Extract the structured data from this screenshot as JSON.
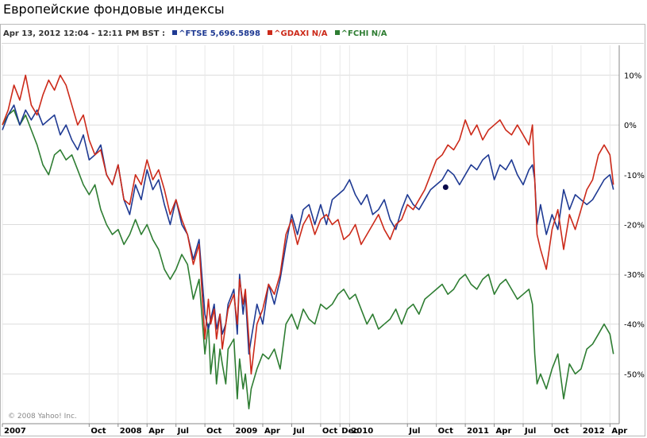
{
  "page_title": "Европейские фондовые индексы",
  "legend": {
    "datetime": "Apr 13, 2012 12:04 - 12:11 PM BST :",
    "entries": [
      {
        "label": "^FTSE 5,696.5898",
        "color": "#1f3a93"
      },
      {
        "label": "^GDAXI N/A",
        "color": "#cc2a1a"
      },
      {
        "label": "^FCHI N/A",
        "color": "#2e7d32"
      }
    ]
  },
  "copyright": "© 2008 Yahoo! Inc.",
  "chart_data": {
    "type": "line",
    "ylim": [
      -60,
      16
    ],
    "y_ticks": [
      10,
      0,
      -10,
      -20,
      -30,
      -40,
      -50
    ],
    "y_tick_labels": [
      "10%",
      "0%",
      "-10%",
      "-20%",
      "-30%",
      "-40%",
      "-50%"
    ],
    "y_axis_side": "right",
    "grid": true,
    "x_range": [
      2007.0,
      2012.33
    ],
    "x_ticks": [
      2007.0,
      2007.75,
      2008.0,
      2008.25,
      2008.5,
      2008.75,
      2009.0,
      2009.25,
      2009.5,
      2009.75,
      2009.917,
      2010.0,
      2010.5,
      2010.75,
      2011.0,
      2011.25,
      2011.5,
      2011.75,
      2012.0,
      2012.25
    ],
    "x_tick_labels": [
      "2007",
      "Oct",
      "2008",
      "Apr",
      "Jul",
      "Oct",
      "2009",
      "Apr",
      "Jul",
      "Oct",
      "Dec",
      "2010",
      "Jul",
      "Oct",
      "2011",
      "Apr",
      "Jul",
      "Oct",
      "2012",
      "Apr"
    ],
    "series": [
      {
        "name": "^FTSE",
        "color": "#1f3a93",
        "x": [
          2007.0,
          2007.05,
          2007.1,
          2007.15,
          2007.2,
          2007.25,
          2007.3,
          2007.35,
          2007.4,
          2007.45,
          2007.5,
          2007.55,
          2007.6,
          2007.65,
          2007.7,
          2007.75,
          2007.8,
          2007.85,
          2007.9,
          2007.95,
          2008.0,
          2008.05,
          2008.1,
          2008.15,
          2008.2,
          2008.25,
          2008.3,
          2008.35,
          2008.4,
          2008.45,
          2008.5,
          2008.55,
          2008.6,
          2008.65,
          2008.7,
          2008.75,
          2008.78,
          2008.8,
          2008.83,
          2008.85,
          2008.88,
          2008.9,
          2008.93,
          2008.95,
          2009.0,
          2009.03,
          2009.05,
          2009.08,
          2009.1,
          2009.13,
          2009.15,
          2009.2,
          2009.25,
          2009.3,
          2009.35,
          2009.4,
          2009.45,
          2009.5,
          2009.55,
          2009.6,
          2009.65,
          2009.7,
          2009.75,
          2009.8,
          2009.85,
          2009.9,
          2009.95,
          2010.0,
          2010.05,
          2010.1,
          2010.15,
          2010.2,
          2010.25,
          2010.3,
          2010.35,
          2010.4,
          2010.45,
          2010.5,
          2010.55,
          2010.6,
          2010.65,
          2010.7,
          2010.75,
          2010.8,
          2010.85,
          2010.9,
          2010.95,
          2011.0,
          2011.05,
          2011.1,
          2011.15,
          2011.2,
          2011.25,
          2011.3,
          2011.35,
          2011.4,
          2011.45,
          2011.5,
          2011.55,
          2011.58,
          2011.6,
          2011.62,
          2011.65,
          2011.7,
          2011.75,
          2011.8,
          2011.85,
          2011.9,
          2011.95,
          2012.0,
          2012.05,
          2012.1,
          2012.15,
          2012.2,
          2012.25,
          2012.28
        ],
        "y": [
          -1,
          2,
          4,
          0,
          3,
          1,
          3,
          0,
          1,
          2,
          -2,
          0,
          -3,
          -5,
          -2,
          -7,
          -6,
          -4,
          -10,
          -12,
          -8,
          -15,
          -18,
          -12,
          -15,
          -9,
          -13,
          -11,
          -16,
          -20,
          -15,
          -20,
          -22,
          -27,
          -23,
          -38,
          -41,
          -39,
          -36,
          -41,
          -38,
          -42,
          -40,
          -36,
          -33,
          -42,
          -30,
          -38,
          -34,
          -46,
          -43,
          -36,
          -40,
          -32,
          -36,
          -31,
          -24,
          -18,
          -22,
          -17,
          -16,
          -20,
          -16,
          -20,
          -15,
          -14,
          -13,
          -11,
          -14,
          -16,
          -14,
          -18,
          -17,
          -15,
          -19,
          -21,
          -17,
          -14,
          -16,
          -17,
          -15,
          -13,
          -12,
          -11,
          -9,
          -10,
          -12,
          -10,
          -8,
          -9,
          -7,
          -6,
          -11,
          -8,
          -9,
          -7,
          -10,
          -12,
          -9,
          -8,
          -11,
          -20,
          -16,
          -22,
          -18,
          -21,
          -13,
          -17,
          -14,
          -15,
          -16,
          -15,
          -13,
          -11,
          -10,
          -13
        ]
      },
      {
        "name": "^GDAXI",
        "color": "#cc2a1a",
        "x": [
          2007.0,
          2007.05,
          2007.1,
          2007.15,
          2007.2,
          2007.25,
          2007.3,
          2007.35,
          2007.4,
          2007.45,
          2007.5,
          2007.55,
          2007.6,
          2007.65,
          2007.7,
          2007.75,
          2007.8,
          2007.85,
          2007.9,
          2007.95,
          2008.0,
          2008.05,
          2008.1,
          2008.15,
          2008.2,
          2008.25,
          2008.3,
          2008.35,
          2008.4,
          2008.45,
          2008.5,
          2008.55,
          2008.6,
          2008.65,
          2008.7,
          2008.75,
          2008.78,
          2008.8,
          2008.83,
          2008.85,
          2008.88,
          2008.9,
          2008.93,
          2008.95,
          2009.0,
          2009.03,
          2009.05,
          2009.08,
          2009.1,
          2009.13,
          2009.15,
          2009.2,
          2009.25,
          2009.3,
          2009.35,
          2009.4,
          2009.45,
          2009.5,
          2009.55,
          2009.6,
          2009.65,
          2009.7,
          2009.75,
          2009.8,
          2009.85,
          2009.9,
          2009.95,
          2010.0,
          2010.05,
          2010.1,
          2010.15,
          2010.2,
          2010.25,
          2010.3,
          2010.35,
          2010.4,
          2010.45,
          2010.5,
          2010.55,
          2010.6,
          2010.65,
          2010.7,
          2010.75,
          2010.8,
          2010.85,
          2010.9,
          2010.95,
          2011.0,
          2011.05,
          2011.1,
          2011.15,
          2011.2,
          2011.25,
          2011.3,
          2011.35,
          2011.4,
          2011.45,
          2011.5,
          2011.55,
          2011.58,
          2011.6,
          2011.62,
          2011.65,
          2011.7,
          2011.75,
          2011.8,
          2011.85,
          2011.9,
          2011.95,
          2012.0,
          2012.05,
          2012.1,
          2012.15,
          2012.2,
          2012.25,
          2012.28
        ],
        "y": [
          0,
          3,
          8,
          5,
          10,
          4,
          2,
          6,
          9,
          7,
          10,
          8,
          4,
          0,
          2,
          -3,
          -6,
          -5,
          -10,
          -12,
          -8,
          -15,
          -16,
          -10,
          -12,
          -7,
          -11,
          -9,
          -13,
          -18,
          -15,
          -19,
          -22,
          -28,
          -24,
          -43,
          -35,
          -40,
          -37,
          -43,
          -38,
          -45,
          -40,
          -37,
          -34,
          -40,
          -31,
          -36,
          -33,
          -43,
          -50,
          -40,
          -37,
          -32,
          -34,
          -30,
          -22,
          -19,
          -24,
          -20,
          -18,
          -22,
          -19,
          -18,
          -20,
          -19,
          -23,
          -22,
          -20,
          -24,
          -22,
          -20,
          -18,
          -21,
          -23,
          -20,
          -19,
          -16,
          -17,
          -15,
          -13,
          -10,
          -7,
          -6,
          -4,
          -5,
          -3,
          1,
          -2,
          0,
          -3,
          -1,
          0,
          1,
          -1,
          -2,
          0,
          -2,
          -4,
          0,
          -11,
          -22,
          -25,
          -29,
          -21,
          -17,
          -25,
          -18,
          -21,
          -17,
          -13,
          -11,
          -6,
          -4,
          -6,
          -12
        ]
      },
      {
        "name": "^FCHI",
        "color": "#2e7d32",
        "x": [
          2007.0,
          2007.05,
          2007.1,
          2007.15,
          2007.2,
          2007.25,
          2007.3,
          2007.35,
          2007.4,
          2007.45,
          2007.5,
          2007.55,
          2007.6,
          2007.65,
          2007.7,
          2007.75,
          2007.8,
          2007.85,
          2007.9,
          2007.95,
          2008.0,
          2008.05,
          2008.1,
          2008.15,
          2008.2,
          2008.25,
          2008.3,
          2008.35,
          2008.4,
          2008.45,
          2008.5,
          2008.55,
          2008.6,
          2008.65,
          2008.7,
          2008.75,
          2008.78,
          2008.8,
          2008.83,
          2008.85,
          2008.88,
          2008.9,
          2008.93,
          2008.95,
          2009.0,
          2009.03,
          2009.05,
          2009.08,
          2009.1,
          2009.13,
          2009.15,
          2009.2,
          2009.25,
          2009.3,
          2009.35,
          2009.4,
          2009.45,
          2009.5,
          2009.55,
          2009.6,
          2009.65,
          2009.7,
          2009.75,
          2009.8,
          2009.85,
          2009.9,
          2009.95,
          2010.0,
          2010.05,
          2010.1,
          2010.15,
          2010.2,
          2010.25,
          2010.3,
          2010.35,
          2010.4,
          2010.45,
          2010.5,
          2010.55,
          2010.6,
          2010.65,
          2010.7,
          2010.75,
          2010.8,
          2010.85,
          2010.9,
          2010.95,
          2011.0,
          2011.05,
          2011.1,
          2011.15,
          2011.2,
          2011.25,
          2011.3,
          2011.35,
          2011.4,
          2011.45,
          2011.5,
          2011.55,
          2011.58,
          2011.6,
          2011.62,
          2011.65,
          2011.7,
          2011.75,
          2011.8,
          2011.85,
          2011.9,
          2011.95,
          2012.0,
          2012.05,
          2012.1,
          2012.15,
          2012.2,
          2012.25,
          2012.28
        ],
        "y": [
          0,
          2,
          3,
          0,
          2,
          -1,
          -4,
          -8,
          -10,
          -6,
          -5,
          -7,
          -6,
          -9,
          -12,
          -14,
          -12,
          -17,
          -20,
          -22,
          -21,
          -24,
          -22,
          -19,
          -22,
          -20,
          -23,
          -25,
          -29,
          -31,
          -29,
          -26,
          -28,
          -35,
          -31,
          -46,
          -40,
          -50,
          -44,
          -52,
          -45,
          -48,
          -52,
          -45,
          -43,
          -55,
          -47,
          -53,
          -50,
          -57,
          -53,
          -49,
          -46,
          -47,
          -45,
          -49,
          -40,
          -38,
          -41,
          -37,
          -39,
          -40,
          -36,
          -37,
          -36,
          -34,
          -33,
          -35,
          -34,
          -37,
          -40,
          -38,
          -41,
          -40,
          -39,
          -37,
          -40,
          -37,
          -36,
          -38,
          -35,
          -34,
          -33,
          -32,
          -34,
          -33,
          -31,
          -30,
          -32,
          -33,
          -31,
          -30,
          -34,
          -32,
          -31,
          -33,
          -35,
          -34,
          -33,
          -36,
          -46,
          -52,
          -50,
          -53,
          -49,
          -46,
          -55,
          -48,
          -50,
          -49,
          -45,
          -44,
          -42,
          -40,
          -42,
          -46
        ]
      }
    ],
    "marker": {
      "series": "^FTSE",
      "x": 2010.83,
      "y": -12.5,
      "color": "#0a0a4a"
    }
  }
}
